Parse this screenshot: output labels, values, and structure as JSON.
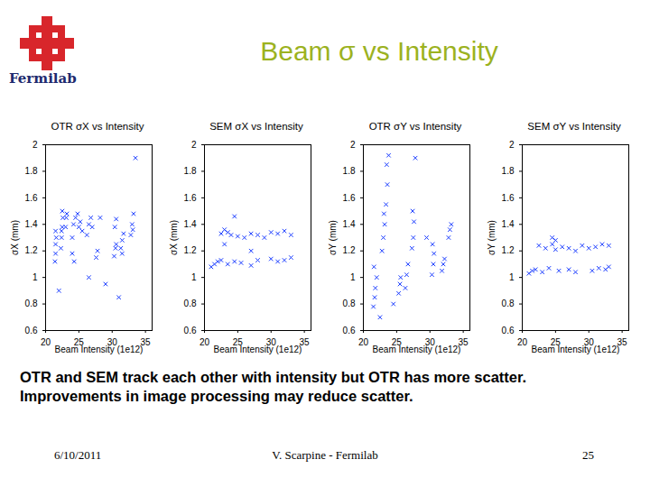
{
  "slide": {
    "title": "Beam σ vs Intensity",
    "logo": "Fermilab",
    "caption": [
      "OTR and SEM track each other with intensity but OTR has more scatter.",
      "Improvements in image processing may reduce scatter."
    ],
    "footer": {
      "date": "6/10/2011",
      "author": "V. Scarpine - Fermilab",
      "page": "25"
    }
  },
  "chart_data": [
    {
      "type": "scatter",
      "title": "OTR σX vs Intensity",
      "x_label": "Beam Intensity (1e12)",
      "y_label": "σX (mm)",
      "xlim": [
        20,
        36
      ],
      "ylim": [
        0.6,
        2
      ],
      "xticks": [
        20,
        25,
        30,
        35
      ],
      "yticks": [
        0.6,
        0.8,
        1,
        1.2,
        1.4,
        1.6,
        1.8,
        2
      ],
      "color": "#1a3cff",
      "marker": "x",
      "x": [
        21.4,
        21.5,
        21.5,
        21.6,
        21.5,
        22.3,
        22.4,
        22.5,
        22.6,
        22.5,
        22.4,
        23.0,
        23.1,
        23.2,
        24.0,
        24.2,
        24.5,
        24.8,
        25.0,
        25.2,
        25.5,
        24.3,
        26.2,
        26.5,
        26.8,
        27.0,
        27.6,
        27.8,
        30.3,
        30.5,
        30.6,
        30.4,
        30.6,
        31.3,
        31.5,
        31.7,
        31.5,
        32.8,
        33.0,
        33.2,
        33.1,
        22.0,
        26.5,
        29.0,
        33.5,
        28.2,
        24.0,
        31.0
      ],
      "values": [
        1.12,
        1.18,
        1.25,
        1.3,
        1.35,
        1.22,
        1.3,
        1.38,
        1.45,
        1.5,
        1.35,
        1.38,
        1.45,
        1.48,
        1.3,
        1.4,
        1.45,
        1.48,
        1.38,
        1.42,
        1.35,
        1.12,
        1.32,
        1.4,
        1.45,
        1.38,
        1.15,
        1.2,
        1.16,
        1.22,
        1.25,
        1.38,
        1.44,
        1.22,
        1.28,
        1.33,
        1.18,
        1.32,
        1.4,
        1.48,
        1.36,
        0.9,
        1.0,
        0.95,
        1.9,
        1.45,
        1.18,
        0.85
      ]
    },
    {
      "type": "scatter",
      "title": "SEM σX vs Intensity",
      "x_label": "Beam Intensity (1e12)",
      "y_label": "σX (mm)",
      "xlim": [
        20,
        36
      ],
      "ylim": [
        0.6,
        2
      ],
      "xticks": [
        20,
        25,
        30,
        35
      ],
      "yticks": [
        0.6,
        0.8,
        1,
        1.2,
        1.4,
        1.6,
        1.8,
        2
      ],
      "color": "#1a3cff",
      "marker": "x",
      "x": [
        22.5,
        23.0,
        23.5,
        24.0,
        25.0,
        26.0,
        27.0,
        28.0,
        29.0,
        30.0,
        31.0,
        32.0,
        33.0,
        21.0,
        21.5,
        22.0,
        22.5,
        23.5,
        24.5,
        25.5,
        27.0,
        28.0,
        30.0,
        31.0,
        32.0,
        33.0,
        24.5,
        27.0,
        23.0
      ],
      "values": [
        1.33,
        1.36,
        1.34,
        1.32,
        1.31,
        1.3,
        1.33,
        1.32,
        1.3,
        1.34,
        1.33,
        1.35,
        1.32,
        1.08,
        1.1,
        1.12,
        1.13,
        1.1,
        1.12,
        1.11,
        1.09,
        1.13,
        1.14,
        1.12,
        1.13,
        1.15,
        1.46,
        1.2,
        1.25
      ]
    },
    {
      "type": "scatter",
      "title": "OTR σY vs Intensity",
      "x_label": "Beam Intensity (1e12)",
      "y_label": "σY (mm)",
      "xlim": [
        20,
        36
      ],
      "ylim": [
        0.6,
        2
      ],
      "xticks": [
        20,
        25,
        30,
        35
      ],
      "yticks": [
        0.6,
        0.8,
        1,
        1.2,
        1.4,
        1.6,
        1.8,
        2
      ],
      "color": "#1a3cff",
      "marker": "x",
      "x": [
        21.5,
        21.7,
        21.8,
        22.0,
        21.6,
        22.8,
        23.0,
        23.2,
        23.1,
        23.4,
        23.6,
        23.5,
        25.3,
        25.5,
        25.6,
        26.3,
        26.5,
        26.7,
        27.3,
        27.5,
        27.6,
        27.4,
        30.3,
        30.5,
        30.6,
        30.4,
        31.8,
        32.0,
        32.2,
        32.8,
        33.0,
        33.2,
        23.8,
        27.8,
        24.5,
        29.5,
        22.5
      ],
      "values": [
        0.78,
        0.85,
        0.92,
        1.0,
        1.08,
        1.2,
        1.3,
        1.4,
        1.48,
        1.55,
        1.7,
        1.85,
        0.88,
        0.95,
        1.0,
        0.92,
        1.02,
        1.1,
        1.22,
        1.3,
        1.42,
        1.5,
        1.02,
        1.1,
        1.18,
        1.25,
        1.05,
        1.1,
        1.14,
        1.3,
        1.36,
        1.4,
        1.92,
        1.9,
        0.8,
        1.3,
        0.7
      ]
    },
    {
      "type": "scatter",
      "title": "SEM σY vs Intensity",
      "x_label": "Beam Intensity (1e12)",
      "y_label": "σY (mm)",
      "xlim": [
        20,
        36
      ],
      "ylim": [
        0.6,
        2
      ],
      "xticks": [
        20,
        25,
        30,
        35
      ],
      "yticks": [
        0.6,
        0.8,
        1,
        1.2,
        1.4,
        1.6,
        1.8,
        2
      ],
      "color": "#1a3cff",
      "marker": "x",
      "x": [
        22.5,
        23.5,
        24.5,
        25.0,
        26.0,
        27.0,
        28.0,
        29.0,
        30.0,
        31.0,
        32.0,
        33.0,
        21.0,
        21.5,
        22.0,
        23.0,
        24.0,
        25.5,
        27.0,
        28.0,
        30.5,
        31.5,
        32.5,
        33.0,
        24.5,
        25.0
      ],
      "values": [
        1.24,
        1.22,
        1.25,
        1.21,
        1.23,
        1.22,
        1.2,
        1.24,
        1.22,
        1.23,
        1.25,
        1.24,
        1.03,
        1.05,
        1.06,
        1.04,
        1.07,
        1.05,
        1.06,
        1.04,
        1.05,
        1.07,
        1.06,
        1.08,
        1.3,
        1.28
      ]
    }
  ]
}
